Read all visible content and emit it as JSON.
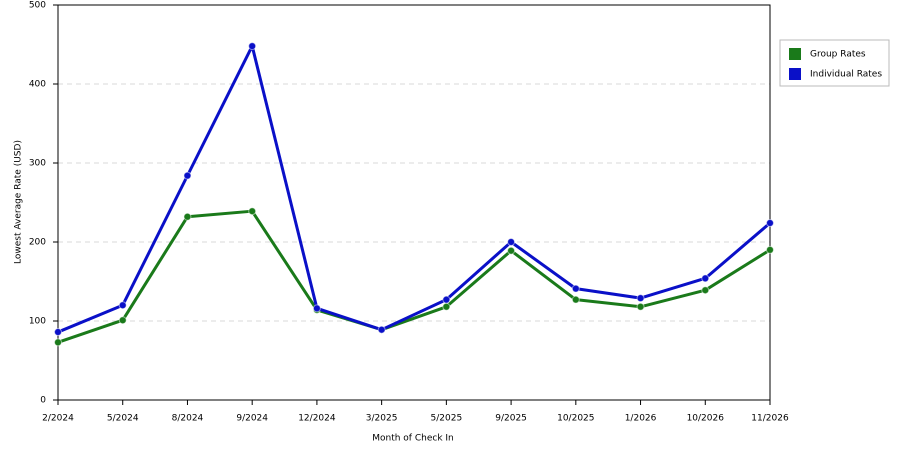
{
  "chart_data": {
    "type": "line",
    "x_label": "Month of Check In",
    "y_label": "Lowest Average Rate (USD)",
    "categories": [
      "2/2024",
      "5/2024",
      "8/2024",
      "9/2024",
      "12/2024",
      "3/2025",
      "5/2025",
      "9/2025",
      "10/2025",
      "1/2026",
      "10/2026",
      "11/2026"
    ],
    "series": [
      {
        "name": "Group Rates",
        "color": "#1a7a1a",
        "values": [
          73,
          101,
          232,
          239,
          114,
          89,
          118,
          189,
          127,
          118,
          139,
          190
        ]
      },
      {
        "name": "Individual Rates",
        "color": "#0a10c8",
        "values": [
          86,
          120,
          284,
          448,
          116,
          89,
          127,
          200,
          141,
          129,
          154,
          224
        ]
      }
    ],
    "ylim": [
      0,
      500
    ],
    "yticks": [
      0,
      100,
      200,
      300,
      400,
      500
    ],
    "grid": true,
    "legend": "right"
  }
}
